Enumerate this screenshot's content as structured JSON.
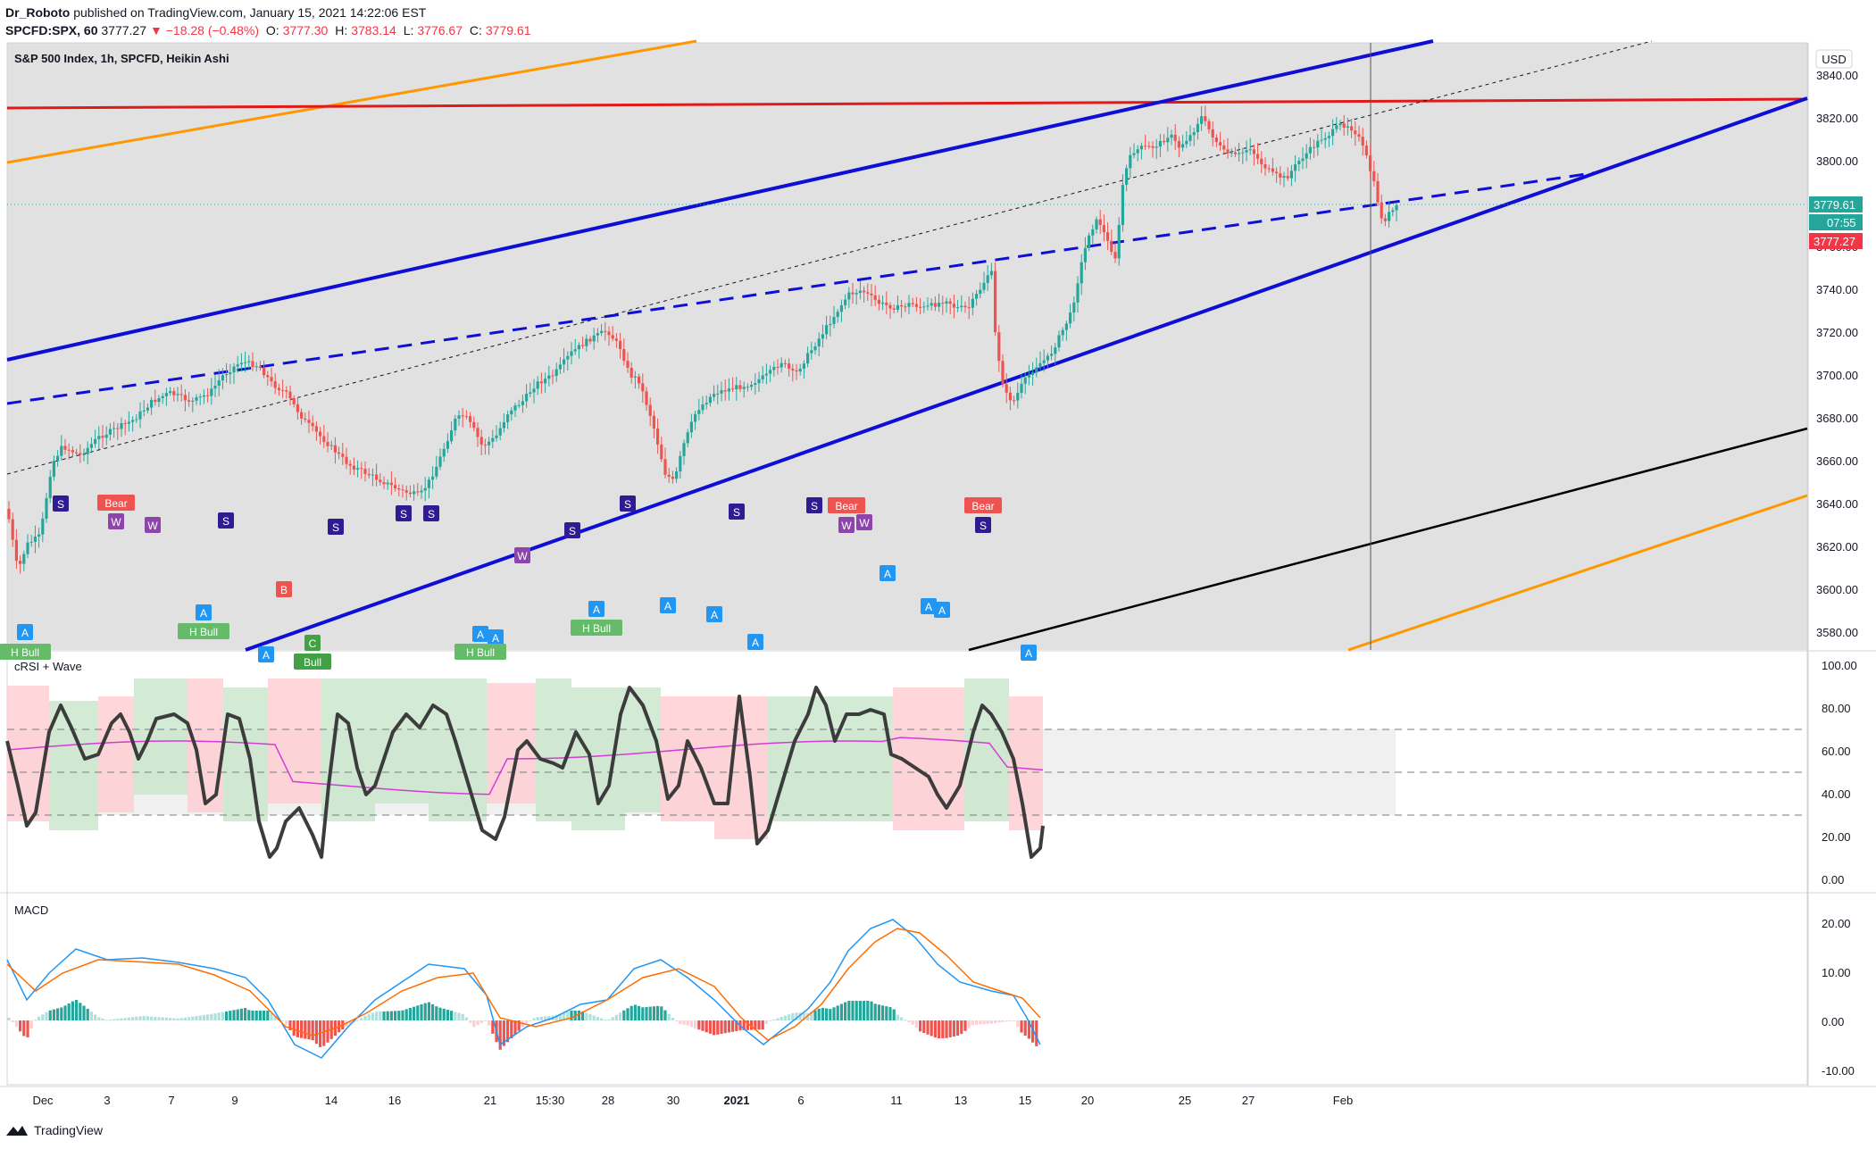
{
  "header": {
    "author": "Dr_Roboto",
    "published_text": "published on TradingView.com, January 15, 2021 14:22:06 EST",
    "symbol": "SPCFD:SPX, 60",
    "last": "3777.27",
    "change": "▼ −18.28 (−0.48%)",
    "o_label": "O:",
    "o": "3777.30",
    "h_label": "H:",
    "h": "3783.14",
    "l_label": "L:",
    "l": "3776.67",
    "c_label": "C:",
    "c": "3779.61"
  },
  "main_pane": {
    "title": "S&P 500 Index, 1h, SPCFD, Heikin Ashi",
    "currency": "USD",
    "price_ticks": [
      "3840.00",
      "3820.00",
      "3800.00",
      "3780.00",
      "3760.00",
      "3740.00",
      "3720.00",
      "3700.00",
      "3680.00",
      "3660.00",
      "3640.00",
      "3620.00",
      "3600.00",
      "3580.00"
    ],
    "last_price_tag": "3779.61",
    "countdown_tag": "07:55",
    "close_tag": "3777.27"
  },
  "rsi_pane": {
    "title": "cRSI + Wave",
    "ticks": [
      "100.00",
      "80.00",
      "60.00",
      "40.00",
      "20.00",
      "0.00"
    ],
    "markers": [
      {
        "t": "A",
        "x": 28,
        "y": 708,
        "kind": "A"
      },
      {
        "t": "H Bull",
        "x": 28,
        "y": 730,
        "kind": "HB"
      },
      {
        "t": "S",
        "x": 68,
        "y": 564,
        "kind": "S"
      },
      {
        "t": "Bear",
        "x": 130,
        "y": 563,
        "kind": "Bear"
      },
      {
        "t": "W",
        "x": 130,
        "y": 584,
        "kind": "W"
      },
      {
        "t": "W",
        "x": 171,
        "y": 588,
        "kind": "W"
      },
      {
        "t": "A",
        "x": 228,
        "y": 686,
        "kind": "A"
      },
      {
        "t": "H Bull",
        "x": 228,
        "y": 707,
        "kind": "HB"
      },
      {
        "t": "S",
        "x": 253,
        "y": 583,
        "kind": "S"
      },
      {
        "t": "A",
        "x": 298,
        "y": 733,
        "kind": "A"
      },
      {
        "t": "B",
        "x": 318,
        "y": 660,
        "kind": "B"
      },
      {
        "t": "C",
        "x": 350,
        "y": 720,
        "kind": "C"
      },
      {
        "t": "Bull",
        "x": 350,
        "y": 741,
        "kind": "Bull"
      },
      {
        "t": "S",
        "x": 376,
        "y": 590,
        "kind": "S"
      },
      {
        "t": "S",
        "x": 452,
        "y": 575,
        "kind": "S"
      },
      {
        "t": "S",
        "x": 483,
        "y": 575,
        "kind": "S"
      },
      {
        "t": "A",
        "x": 538,
        "y": 710,
        "kind": "A"
      },
      {
        "t": "A",
        "x": 555,
        "y": 714,
        "kind": "A"
      },
      {
        "t": "H Bull",
        "x": 538,
        "y": 730,
        "kind": "HB"
      },
      {
        "t": "W",
        "x": 585,
        "y": 622,
        "kind": "W"
      },
      {
        "t": "S",
        "x": 641,
        "y": 594,
        "kind": "S"
      },
      {
        "t": "A",
        "x": 668,
        "y": 682,
        "kind": "A"
      },
      {
        "t": "H Bull",
        "x": 668,
        "y": 703,
        "kind": "HB"
      },
      {
        "t": "S",
        "x": 703,
        "y": 564,
        "kind": "S"
      },
      {
        "t": "A",
        "x": 748,
        "y": 678,
        "kind": "A"
      },
      {
        "t": "A",
        "x": 800,
        "y": 688,
        "kind": "A"
      },
      {
        "t": "S",
        "x": 825,
        "y": 573,
        "kind": "S"
      },
      {
        "t": "A",
        "x": 846,
        "y": 719,
        "kind": "A"
      },
      {
        "t": "S",
        "x": 912,
        "y": 566,
        "kind": "S"
      },
      {
        "t": "Bear",
        "x": 948,
        "y": 566,
        "kind": "Bear"
      },
      {
        "t": "W",
        "x": 948,
        "y": 588,
        "kind": "W"
      },
      {
        "t": "W",
        "x": 968,
        "y": 585,
        "kind": "W"
      },
      {
        "t": "A",
        "x": 994,
        "y": 642,
        "kind": "A"
      },
      {
        "t": "A",
        "x": 1040,
        "y": 679,
        "kind": "A"
      },
      {
        "t": "A",
        "x": 1055,
        "y": 683,
        "kind": "A"
      },
      {
        "t": "Bear",
        "x": 1101,
        "y": 566,
        "kind": "Bear"
      },
      {
        "t": "S",
        "x": 1101,
        "y": 588,
        "kind": "S"
      },
      {
        "t": "A",
        "x": 1152,
        "y": 731,
        "kind": "A"
      }
    ]
  },
  "macd_pane": {
    "title": "MACD",
    "ticks": [
      "20.00",
      "10.00",
      "0.00",
      "-10.00"
    ]
  },
  "time_axis": {
    "labels": [
      {
        "t": "Dec",
        "x": 48
      },
      {
        "t": "3",
        "x": 120
      },
      {
        "t": "7",
        "x": 192
      },
      {
        "t": "9",
        "x": 263
      },
      {
        "t": "14",
        "x": 371
      },
      {
        "t": "16",
        "x": 442
      },
      {
        "t": "21",
        "x": 549
      },
      {
        "t": "15:30",
        "x": 616
      },
      {
        "t": "28",
        "x": 681
      },
      {
        "t": "30",
        "x": 754
      },
      {
        "t": "2021",
        "x": 825,
        "bold": true
      },
      {
        "t": "6",
        "x": 897
      },
      {
        "t": "11",
        "x": 1004
      },
      {
        "t": "13",
        "x": 1076
      },
      {
        "t": "15",
        "x": 1148
      },
      {
        "t": "20",
        "x": 1218
      },
      {
        "t": "25",
        "x": 1327
      },
      {
        "t": "27",
        "x": 1398
      },
      {
        "t": "Feb",
        "x": 1504
      }
    ]
  },
  "footer": {
    "brand": "TradingView"
  },
  "colors": {
    "up": "#26a69a",
    "down": "#ef5350",
    "blue": "#0e0ed6",
    "red": "#e01919",
    "orange": "#ff9800",
    "pane_bg": "#e1e1e1",
    "macd": "#2196f3",
    "signal": "#ff6d00"
  }
}
